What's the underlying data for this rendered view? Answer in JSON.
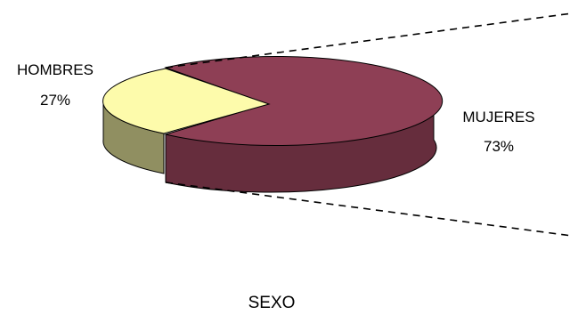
{
  "chart_data": {
    "type": "pie",
    "title": "SEXO",
    "slices": [
      {
        "name": "MUJERES",
        "value": 73,
        "label": "73%",
        "color": "#8e3f55"
      },
      {
        "name": "HOMBRES",
        "value": 27,
        "label": "27%",
        "color": "#fdfbab"
      }
    ],
    "style": "3d-exploded-pie"
  }
}
